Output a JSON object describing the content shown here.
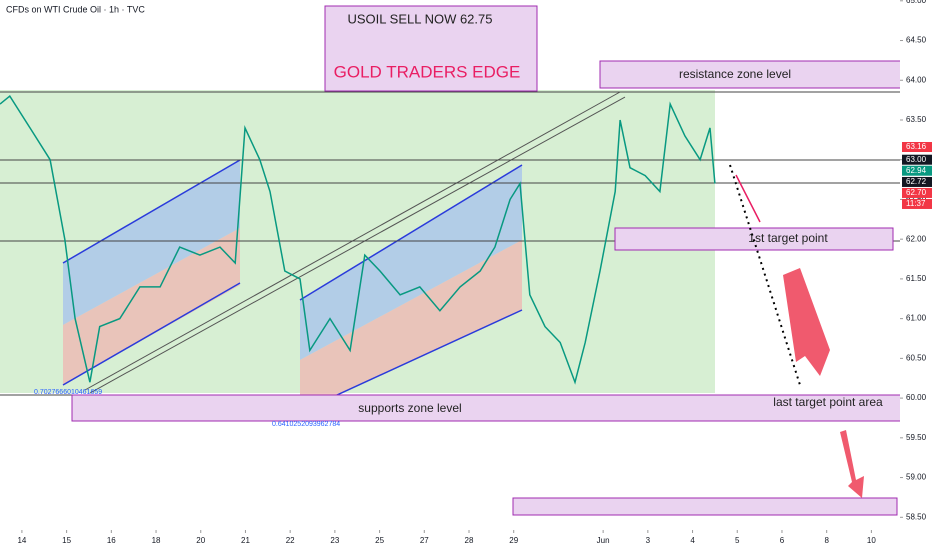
{
  "chart_data": {
    "type": "line",
    "title": "CFDs on WTI Crude Oil · 1h · TVC",
    "x": [
      -0.49,
      -0.27,
      0.18,
      0.63,
      0.96,
      1.19,
      1.52,
      1.74,
      2.19,
      2.64,
      3.09,
      3.53,
      3.98,
      4.43,
      4.77,
      4.99,
      5.32,
      5.55,
      5.88,
      6.22,
      6.44,
      6.89,
      7.34,
      7.67,
      8.01,
      8.46,
      8.9,
      9.35,
      9.8,
      10.25,
      10.58,
      10.92,
      11.14,
      11.36,
      11.7,
      12.04,
      12.37,
      12.6,
      12.93,
      13.27,
      13.38,
      13.6,
      13.94,
      14.27,
      14.5,
      14.83,
      15.17,
      15.39,
      15.5
    ],
    "series": [
      {
        "color": "#089981",
        "values": [
          63.7,
          63.8,
          63.4,
          63.0,
          62.0,
          61.0,
          60.2,
          60.9,
          61.0,
          61.4,
          61.4,
          61.9,
          61.8,
          61.9,
          61.7,
          63.4,
          63.0,
          62.6,
          61.6,
          61.5,
          60.6,
          61.0,
          60.6,
          61.8,
          61.6,
          61.3,
          61.4,
          61.1,
          61.4,
          61.6,
          61.9,
          62.5,
          62.7,
          61.3,
          60.9,
          60.7,
          60.2,
          60.7,
          61.6,
          62.6,
          63.5,
          62.9,
          62.8,
          62.6,
          63.7,
          63.3,
          63.0,
          63.4,
          62.7
        ]
      }
    ],
    "xlim": [
      -0.49,
      19.64
    ],
    "ylim": [
      58.34,
      65.01
    ],
    "xticks": [
      {
        "value": 0,
        "label": "14"
      },
      {
        "value": 1,
        "label": "15"
      },
      {
        "value": 2,
        "label": "16"
      },
      {
        "value": 3,
        "label": "18"
      },
      {
        "value": 4,
        "label": "20"
      },
      {
        "value": 5,
        "label": "21"
      },
      {
        "value": 6,
        "label": "22"
      },
      {
        "value": 7,
        "label": "23"
      },
      {
        "value": 8,
        "label": "25"
      },
      {
        "value": 9,
        "label": "27"
      },
      {
        "value": 10,
        "label": "28"
      },
      {
        "value": 11,
        "label": "29"
      },
      {
        "value": 13,
        "label": "Jun"
      },
      {
        "value": 14,
        "label": "3"
      },
      {
        "value": 15,
        "label": "4"
      },
      {
        "value": 16,
        "label": "5"
      },
      {
        "value": 17,
        "label": "6"
      },
      {
        "value": 18,
        "label": "8"
      },
      {
        "value": 19,
        "label": "10"
      }
    ],
    "yticks": [
      {
        "value": 58.5,
        "label": "58.50"
      },
      {
        "value": 59,
        "label": "59.00"
      },
      {
        "value": 59.5,
        "label": "59.50"
      },
      {
        "value": 60,
        "label": "60.00"
      },
      {
        "value": 60.5,
        "label": "60.50"
      },
      {
        "value": 61,
        "label": "61.00"
      },
      {
        "value": 61.5,
        "label": "61.50"
      },
      {
        "value": 62,
        "label": "62.00"
      },
      {
        "value": 62.5,
        "label": "62.50"
      },
      {
        "value": 63,
        "label": "63.00"
      },
      {
        "value": 63.5,
        "label": "63.50"
      },
      {
        "value": 64,
        "label": "64.00"
      },
      {
        "value": 64.5,
        "label": "64.50"
      },
      {
        "value": 65,
        "label": "65.00"
      }
    ],
    "price_labels": [
      {
        "value": 63.16,
        "label": "63.16",
        "color": "#f23645"
      },
      {
        "value": 63.0,
        "label": "63.00",
        "color": "#131722"
      },
      {
        "value": 62.94,
        "label": "62.94",
        "color": "#089981"
      },
      {
        "value": 62.72,
        "label": "62.72",
        "color": "#131722"
      },
      {
        "value": 62.7,
        "label": "62.70",
        "color": "#f23645"
      }
    ],
    "countdown": "11:37",
    "annotations": {
      "signal": "USOIL SELL NOW 62.75",
      "brand": "GOLD TRADERS EDGE",
      "resistance": "resistance zone level",
      "target1": "1st target point",
      "support": "supports zone level",
      "target_last": "last target point area",
      "fib1": "0.7027666010461659",
      "fib2": "0.6410252093962784"
    }
  }
}
